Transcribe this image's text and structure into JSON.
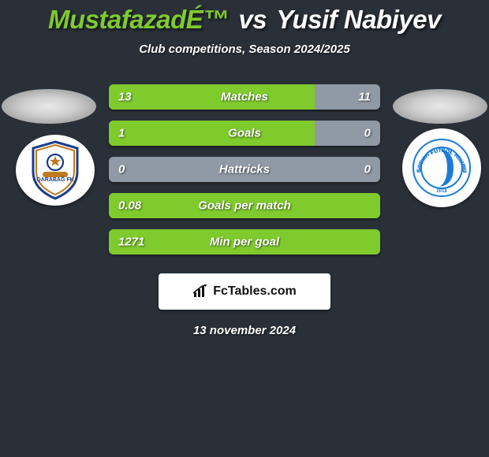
{
  "colors": {
    "background": "#2a3038",
    "accent_green": "#7fca2d",
    "bar_neutral": "#8f9aa6",
    "text_white": "#ffffff"
  },
  "title": {
    "player1": "MustafazadÉ™",
    "vs": "vs",
    "player2": "Yusif Nabiyev"
  },
  "subtitle": "Club competitions, Season 2024/2025",
  "stats": [
    {
      "label": "Matches",
      "left_val": "13",
      "right_val": "11",
      "left_pct": 76
    },
    {
      "label": "Goals",
      "left_val": "1",
      "right_val": "0",
      "left_pct": 76
    },
    {
      "label": "Hattricks",
      "left_val": "0",
      "right_val": "0",
      "left_pct": 0
    },
    {
      "label": "Goals per match",
      "left_val": "0.08",
      "right_val": "",
      "left_pct": 100
    },
    {
      "label": "Min per goal",
      "left_val": "1271",
      "right_val": "",
      "left_pct": 100
    }
  ],
  "brand": "FcTables.com",
  "date": "13 november 2024",
  "logos": {
    "left_name": "qarabag-logo",
    "right_name": "sabah-logo"
  }
}
